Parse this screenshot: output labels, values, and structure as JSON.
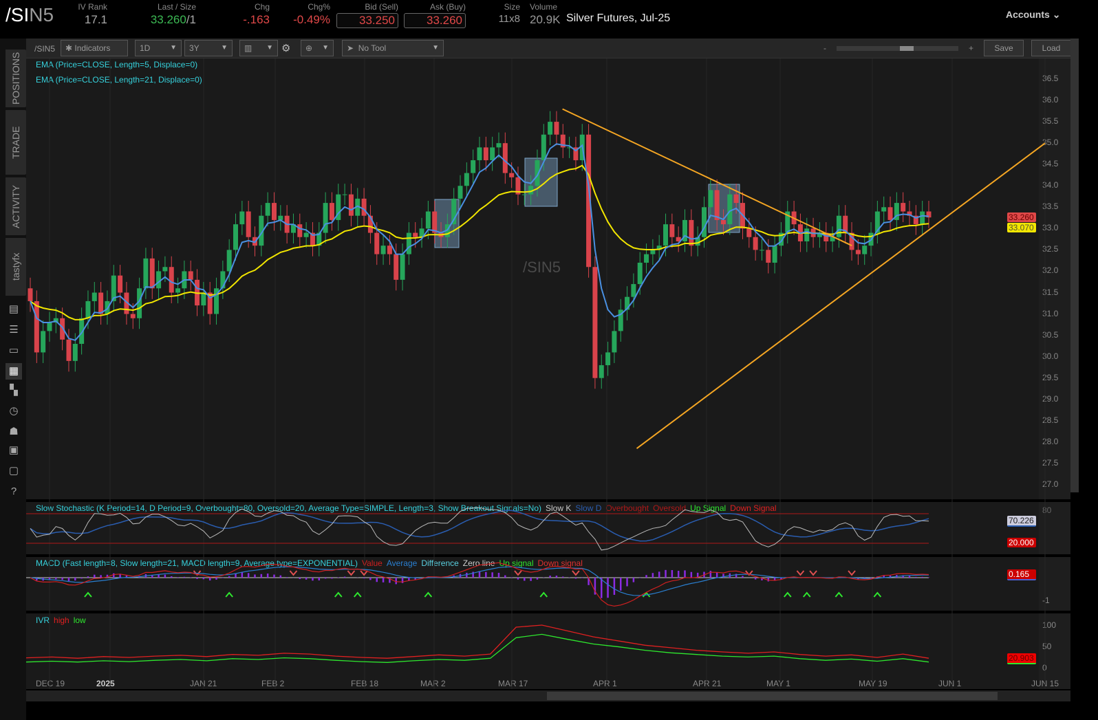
{
  "header": {
    "symbol_prefix": "/SI",
    "symbol_suffix": "N5",
    "iv_rank": {
      "label": "IV Rank",
      "value": "17.1"
    },
    "last": {
      "label": "Last / Size",
      "value": "33.260",
      "size": "/1"
    },
    "chg": {
      "label": "Chg",
      "value": "-.163"
    },
    "chgpct": {
      "label": "Chg%",
      "value": "-0.49%"
    },
    "bid": {
      "label": "Bid (Sell)",
      "value": "33.250"
    },
    "ask": {
      "label": "Ask (Buy)",
      "value": "33.260"
    },
    "size": {
      "label": "Size",
      "value": "11x8"
    },
    "volume": {
      "label": "Volume",
      "value": "20.9K"
    },
    "description": "Silver Futures, Jul-25",
    "accounts": "Accounts"
  },
  "sidebar": {
    "tabs": [
      "POSITIONS",
      "TRADE",
      "ACTIVITY",
      "tastyfx"
    ],
    "icons": [
      "news-icon",
      "watchlist-icon",
      "tv-icon",
      "chart-icon",
      "grid-icon",
      "history-icon",
      "community-icon",
      "calendar-icon",
      "fx-icon",
      "help-icon"
    ]
  },
  "toolbar": {
    "symbol": "/SIN5",
    "indicators": "Indicators",
    "interval": "1D",
    "range": "3Y",
    "tool": "No Tool",
    "save": "Save",
    "load": "Load",
    "zoom_minus": "-",
    "zoom_plus": "+"
  },
  "chart": {
    "watermark": "/SIN5",
    "studies": [
      "EMA (Price=CLOSE, Length=5, Displace=0)",
      "EMA (Price=CLOSE, Length=21, Displace=0)"
    ],
    "colors": {
      "up": "#26a65b",
      "down": "#d9434b",
      "ema5": "#4a90e2",
      "ema21": "#f2e600",
      "trend": "#f5a623",
      "box": "#7fa6c9"
    },
    "y_ticks": [
      "36.5",
      "36.0",
      "35.5",
      "35.0",
      "34.5",
      "34.0",
      "33.5",
      "33.0",
      "32.5",
      "32.0",
      "31.5",
      "31.0",
      "30.5",
      "30.0",
      "29.5",
      "29.0",
      "28.5",
      "28.0",
      "27.5",
      "27.0"
    ],
    "last_badge": "33.260",
    "ema21_badge": "33.070",
    "x_ticks": [
      {
        "label": "DEC 19",
        "date": "2024-12-19"
      },
      {
        "label": "2025",
        "date": "2025-01-01"
      },
      {
        "label": "JAN 21",
        "date": "2025-01-21"
      },
      {
        "label": "FEB 2",
        "date": "2025-02-02"
      },
      {
        "label": "FEB 18",
        "date": "2025-02-18"
      },
      {
        "label": "MAR 2",
        "date": "2025-03-02"
      },
      {
        "label": "MAR 17",
        "date": "2025-03-17"
      },
      {
        "label": "APR 1",
        "date": "2025-04-01"
      },
      {
        "label": "APR 21",
        "date": "2025-04-21"
      },
      {
        "label": "MAY 1",
        "date": "2025-05-01"
      },
      {
        "label": "MAY 19",
        "date": "2025-05-19"
      },
      {
        "label": "JUN 1",
        "date": "2025-06-01"
      },
      {
        "label": "JUN 15",
        "date": "2025-06-15"
      }
    ],
    "trendlines": [
      {
        "from": [
          "2025-03-25",
          35.8
        ],
        "to": [
          "2025-05-15",
          32.6
        ]
      },
      {
        "from": [
          "2025-04-07",
          27.85
        ],
        "to": [
          "2025-06-15",
          35.0
        ]
      }
    ]
  },
  "stoch": {
    "title": "Slow Stochastic (K Period=14, D Period=9, Overbought=80, Oversold=20, Average Type=SIMPLE, Length=3, Show Breakout Signals=No)",
    "legend": [
      {
        "t": "Slow K",
        "c": "#cccccc"
      },
      {
        "t": "Slow D",
        "c": "#2a5db0"
      },
      {
        "t": "Overbought",
        "c": "#b01818"
      },
      {
        "t": "Oversold",
        "c": "#b01818"
      },
      {
        "t": "Up Signal",
        "c": "#2ee82e"
      },
      {
        "t": "Down Signal",
        "c": "#e02020"
      }
    ],
    "k_badge": "70.226",
    "oversold_badge": "20.000",
    "ticks": [
      "80",
      "20"
    ]
  },
  "macd": {
    "title": "MACD (Fast length=8, Slow length=21, MACD length=9, Average type=EXPONENTIAL)",
    "legend": [
      {
        "t": "Value",
        "c": "#d02020"
      },
      {
        "t": "Average",
        "c": "#2a7fd0"
      },
      {
        "t": "Difference",
        "c": "#5ad0e0"
      },
      {
        "t": "Zero line",
        "c": "#cccccc"
      },
      {
        "t": "Up signal",
        "c": "#2ee82e"
      },
      {
        "t": "Down signal",
        "c": "#e03030"
      }
    ],
    "badge": "0.165",
    "ticks": [
      "-1"
    ]
  },
  "ivr": {
    "title": "IVR",
    "legend": [
      {
        "t": "high",
        "c": "#e02020"
      },
      {
        "t": "low",
        "c": "#2ee82e"
      }
    ],
    "badge": "20.903",
    "ticks": [
      "100",
      "50",
      "0"
    ],
    "high": [
      22,
      24,
      21,
      25,
      23,
      26,
      28,
      25,
      30,
      28,
      33,
      31,
      26,
      23,
      21,
      25,
      29,
      26,
      31,
      95,
      100,
      86,
      72,
      62,
      52,
      46,
      40,
      36,
      33,
      36,
      30,
      26,
      29,
      23,
      31,
      21
    ],
    "low": [
      12,
      14,
      12,
      15,
      13,
      16,
      18,
      15,
      20,
      18,
      22,
      20,
      16,
      13,
      11,
      15,
      18,
      16,
      21,
      70,
      78,
      66,
      55,
      48,
      40,
      34,
      30,
      26,
      24,
      26,
      20,
      16,
      19,
      14,
      20,
      12
    ]
  },
  "chart_data": {
    "type": "candlestick",
    "series": [
      {
        "name": "/SIN5",
        "close": [
          31.3,
          30.1,
          30.6,
          30.8,
          30.9,
          30.4,
          29.9,
          30.3,
          30.9,
          31.3,
          31.5,
          31.0,
          31.3,
          31.9,
          31.5,
          31.0,
          30.9,
          31.6,
          32.3,
          31.6,
          32.0,
          32.1,
          31.5,
          31.6,
          32.0,
          31.8,
          31.2,
          31.5,
          31.0,
          31.6,
          32.0,
          32.5,
          33.1,
          33.4,
          32.8,
          32.6,
          33.3,
          33.6,
          33.2,
          33.3,
          32.9,
          33.1,
          32.8,
          32.9,
          32.6,
          32.9,
          33.6,
          33.2,
          33.8,
          33.8,
          33.3,
          33.7,
          33.3,
          32.9,
          32.4,
          32.6,
          32.4,
          31.8,
          32.4,
          32.9,
          32.8,
          33.0,
          33.4,
          32.9,
          32.8,
          33.1,
          33.7,
          34.0,
          34.3,
          34.6,
          34.9,
          34.6,
          34.9,
          35.0,
          34.3,
          34.2,
          33.8,
          33.8,
          34.0,
          34.6,
          35.2,
          35.5,
          35.2,
          34.9,
          34.9,
          34.6,
          35.2,
          32.1,
          29.5,
          29.8,
          30.1,
          30.6,
          31.1,
          31.4,
          31.7,
          32.2,
          32.4,
          32.5,
          32.6,
          33.1,
          32.8,
          32.7,
          33.2,
          32.6,
          32.8,
          33.5,
          33.9,
          33.2,
          33.1,
          33.8,
          33.6,
          33.0,
          32.8,
          32.5,
          32.5,
          32.2,
          32.6,
          32.9,
          33.4,
          33.1,
          32.7,
          33.0,
          32.8,
          32.9,
          32.7,
          32.8,
          33.3,
          32.9,
          32.5,
          32.4,
          32.6,
          32.9,
          33.4,
          33.5,
          33.2,
          33.6,
          33.4,
          33.3,
          33.1,
          33.4,
          33.26
        ]
      }
    ],
    "ylim": [
      26.8,
      36.9
    ]
  }
}
